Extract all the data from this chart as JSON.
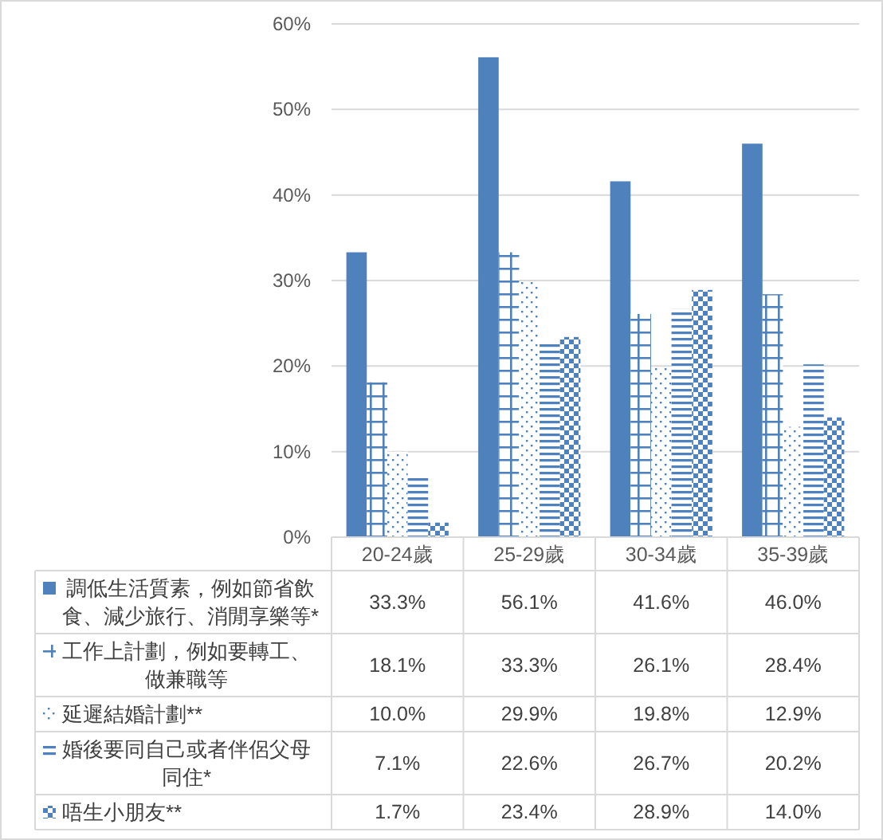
{
  "chart_data": {
    "type": "bar",
    "categories": [
      "20-24歲",
      "25-29歲",
      "30-34歲",
      "35-39歲"
    ],
    "series": [
      {
        "name": "調低生活質素，例如節省飲食、減少旅行、消閒享樂等*",
        "color": "#4f81bd",
        "values": [
          33.3,
          56.1,
          41.6,
          46.0
        ],
        "value_labels": [
          "33.3%",
          "56.1%",
          "41.6%",
          "46.0%"
        ]
      },
      {
        "name": "工作上計劃，例如要轉工、做兼職等",
        "color": "#4f81bd",
        "values": [
          18.1,
          33.3,
          26.1,
          28.4
        ],
        "value_labels": [
          "18.1%",
          "33.3%",
          "26.1%",
          "28.4%"
        ]
      },
      {
        "name": "延遲結婚計劃**",
        "color": "#4f81bd",
        "values": [
          10.0,
          29.9,
          19.8,
          12.9
        ],
        "value_labels": [
          "10.0%",
          "29.9%",
          "19.8%",
          "12.9%"
        ]
      },
      {
        "name": "婚後要同自己或者伴侶父母同住*",
        "color": "#4f81bd",
        "values": [
          7.1,
          22.6,
          26.7,
          20.2
        ],
        "value_labels": [
          "7.1%",
          "22.6%",
          "26.7%",
          "20.2%"
        ]
      },
      {
        "name": "唔生小朋友**",
        "color": "#4f81bd",
        "values": [
          1.7,
          23.4,
          28.9,
          14.0
        ],
        "value_labels": [
          "1.7%",
          "23.4%",
          "28.9%",
          "14.0%"
        ]
      }
    ],
    "ylim": [
      0,
      60
    ],
    "yticks": [
      {
        "value": 0,
        "label": "0%"
      },
      {
        "value": 10,
        "label": "10%"
      },
      {
        "value": 20,
        "label": "20%"
      },
      {
        "value": 30,
        "label": "30%"
      },
      {
        "value": 40,
        "label": "40%"
      },
      {
        "value": 50,
        "label": "50%"
      },
      {
        "value": 60,
        "label": "60%"
      }
    ],
    "grid": "y",
    "legend": "bottom"
  }
}
